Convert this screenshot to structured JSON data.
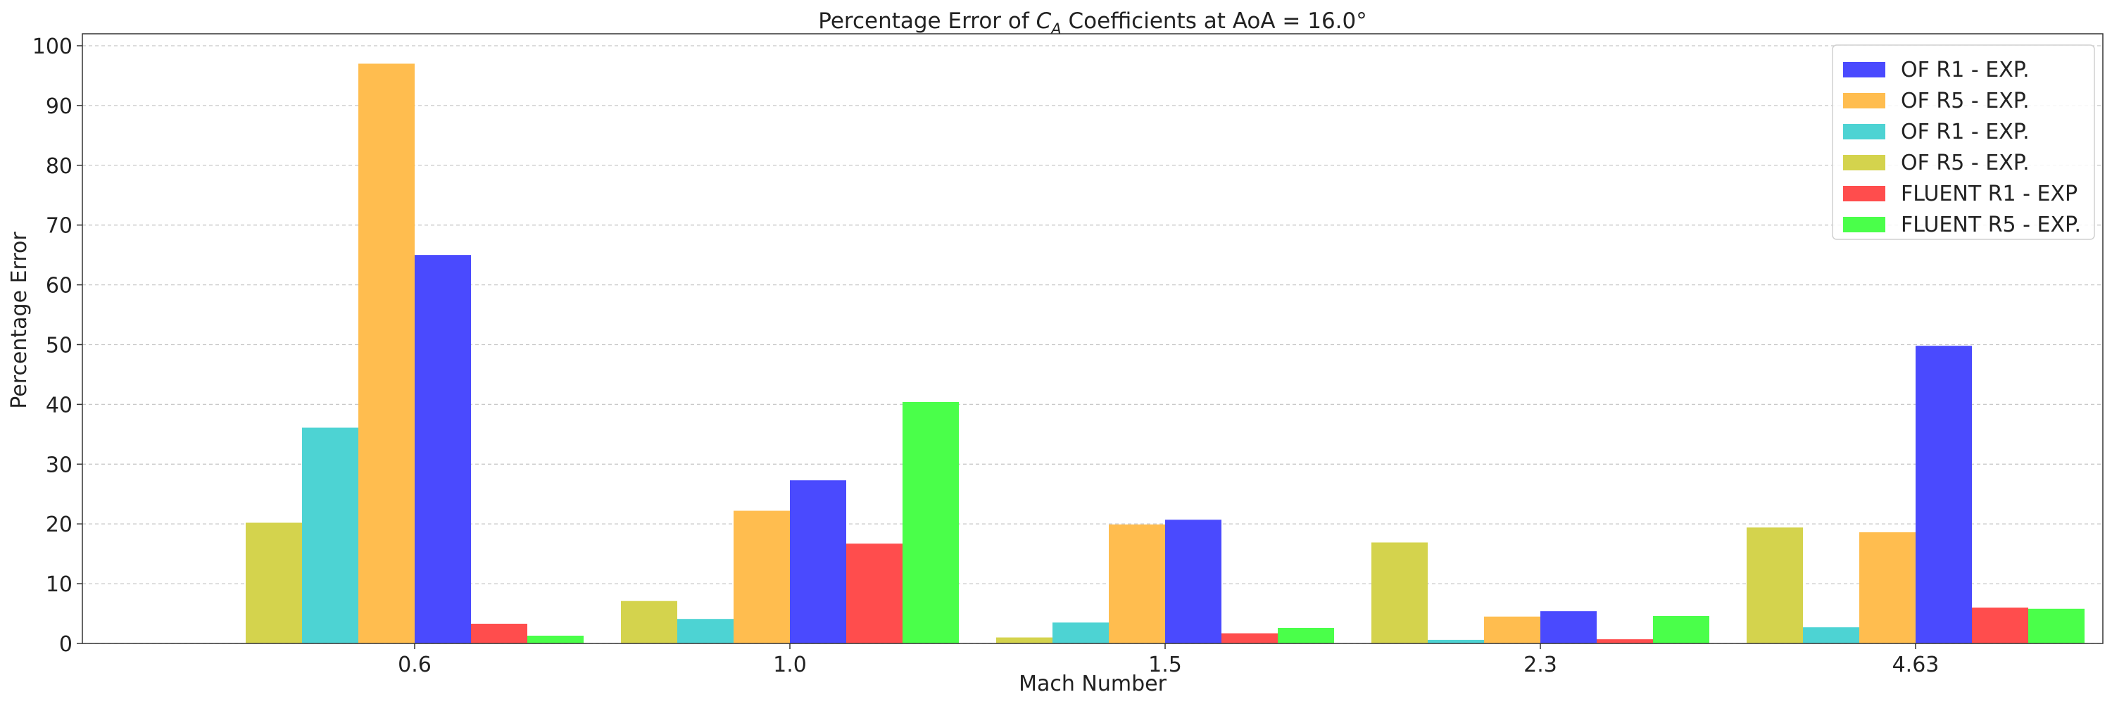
{
  "chart_data": {
    "type": "bar",
    "title_prefix": "Percentage Error of ",
    "title_symbol": "C",
    "title_subscript": "A",
    "title_suffix": " Coefficients at AoA = 16.0°",
    "xlabel": "Mach Number",
    "ylabel": "Percentage Error",
    "categories": [
      "0.6",
      "1.0",
      "1.5",
      "2.3",
      "4.63"
    ],
    "ylim": [
      0,
      102
    ],
    "yticks": [
      0,
      10,
      20,
      30,
      40,
      50,
      60,
      70,
      80,
      90,
      100
    ],
    "grid": "horizontal dashed",
    "legend_position": "top-right",
    "bar_order": [
      3,
      2,
      1,
      0,
      4,
      5
    ],
    "series": [
      {
        "name": "OF R1 - EXP.",
        "color": "#4a4afe",
        "values": [
          65.0,
          27.3,
          20.7,
          5.4,
          49.8
        ]
      },
      {
        "name": "OF R5 - EXP.",
        "color": "#ffbd4f",
        "values": [
          97.0,
          22.2,
          19.9,
          4.5,
          18.6
        ]
      },
      {
        "name": "OF R1 - EXP.",
        "color": "#4dd3d3",
        "values": [
          36.1,
          4.1,
          3.5,
          0.6,
          2.7
        ]
      },
      {
        "name": "OF R5 - EXP.",
        "color": "#d4d34d",
        "values": [
          20.2,
          7.1,
          1.0,
          16.9,
          19.4
        ]
      },
      {
        "name": "FLUENT R1 - EXP",
        "color": "#ff4d4d",
        "values": [
          3.3,
          16.7,
          1.7,
          0.7,
          6.0
        ]
      },
      {
        "name": "FLUENT R5 - EXP.",
        "color": "#4aff4a",
        "values": [
          1.3,
          40.4,
          2.6,
          4.6,
          5.8
        ]
      }
    ]
  }
}
